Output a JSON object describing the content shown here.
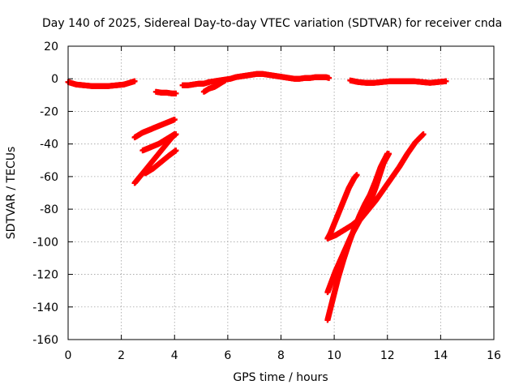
{
  "chart_data": {
    "type": "scatter",
    "title": "Day 140 of 2025, Sidereal Day-to-day VTEC variation (SDTVAR) for receiver cnda",
    "xlabel": "GPS time / hours",
    "ylabel": "SDTVAR / TECUs",
    "xlim": [
      0,
      16
    ],
    "ylim": [
      -160,
      20
    ],
    "xticks": [
      0,
      2,
      4,
      6,
      8,
      10,
      12,
      14,
      16
    ],
    "yticks": [
      -160,
      -140,
      -120,
      -100,
      -80,
      -60,
      -40,
      -20,
      0,
      20
    ],
    "grid": true,
    "marker_color": "#ff0000",
    "series": [
      {
        "x": [
          0.0,
          0.3,
          0.6,
          0.9,
          1.2,
          1.5,
          1.8,
          2.1,
          2.3,
          2.5
        ],
        "y": [
          -2,
          -3.5,
          -4,
          -4.5,
          -4.5,
          -4.5,
          -4,
          -3.5,
          -2.5,
          -1.5
        ]
      },
      {
        "x": [
          3.3,
          3.5,
          3.7,
          3.9,
          4.05
        ],
        "y": [
          -8,
          -8.5,
          -8.5,
          -9,
          -9
        ]
      },
      {
        "x": [
          4.3,
          4.5,
          4.7,
          4.9,
          5.1,
          5.3,
          5.5,
          5.7,
          5.9,
          6.1,
          6.3,
          6.5,
          6.7,
          6.9,
          7.1,
          7.3,
          7.5,
          7.7,
          7.9,
          8.1,
          8.3,
          8.5,
          8.7,
          8.9,
          9.1,
          9.3,
          9.5,
          9.7,
          9.8
        ],
        "y": [
          -4,
          -4,
          -3.5,
          -3,
          -3,
          -2,
          -1.5,
          -1,
          -0.5,
          0,
          1,
          1.5,
          2,
          2.5,
          3,
          3,
          2.5,
          2,
          1.5,
          1,
          0.5,
          0,
          0,
          0.5,
          0.5,
          1,
          1,
          1,
          0.5
        ]
      },
      {
        "x": [
          5.1,
          5.3,
          5.5,
          5.7,
          5.9
        ],
        "y": [
          -8,
          -6,
          -5,
          -3,
          -1
        ]
      },
      {
        "x": [
          10.6,
          10.9,
          11.2,
          11.5,
          11.8,
          12.1,
          12.4,
          12.7,
          13.0,
          13.3,
          13.6,
          13.9,
          14.2
        ],
        "y": [
          -1,
          -2,
          -2.5,
          -2.5,
          -2,
          -1.5,
          -1.5,
          -1.5,
          -1.5,
          -2,
          -2.5,
          -2,
          -1.5
        ]
      },
      {
        "x": [
          2.5,
          2.8,
          3.1,
          3.4,
          3.7,
          4.0
        ],
        "y": [
          -36,
          -33,
          -31,
          -29,
          -27,
          -25
        ]
      },
      {
        "x": [
          2.8,
          3.1,
          3.4,
          3.7,
          4.0
        ],
        "y": [
          -44,
          -42,
          -40,
          -37,
          -34
        ]
      },
      {
        "x": [
          2.5,
          2.7,
          2.9,
          3.1,
          3.3,
          3.5,
          3.7,
          3.9,
          4.05
        ],
        "y": [
          -64,
          -60,
          -56,
          -52,
          -48,
          -44,
          -40,
          -36,
          -34
        ]
      },
      {
        "x": [
          2.9,
          3.2,
          3.5,
          3.8,
          4.05
        ],
        "y": [
          -58,
          -55,
          -51,
          -47,
          -44
        ]
      },
      {
        "x": [
          9.75,
          9.85,
          9.95,
          10.05,
          10.15,
          10.25,
          10.35,
          10.45,
          10.55,
          10.65,
          10.75,
          10.85
        ],
        "y": [
          -98,
          -95,
          -91,
          -87,
          -83,
          -79,
          -75,
          -71,
          -67,
          -64,
          -61,
          -59
        ]
      },
      {
        "x": [
          9.75,
          10.05,
          10.35,
          10.65,
          10.95,
          11.25,
          11.55,
          11.85,
          12.05
        ],
        "y": [
          -98,
          -96,
          -93,
          -90,
          -86,
          -80,
          -67,
          -52,
          -46
        ]
      },
      {
        "x": [
          9.75,
          10.05,
          10.35,
          10.65,
          10.95,
          11.25,
          11.55,
          11.85,
          12.15,
          12.45,
          12.75,
          13.05,
          13.35
        ],
        "y": [
          -131,
          -118,
          -107,
          -96,
          -87,
          -81,
          -75,
          -68,
          -61,
          -54,
          -46,
          -39,
          -34
        ]
      },
      {
        "x": [
          9.75,
          9.95,
          10.15,
          10.35,
          10.55,
          10.75,
          10.95,
          11.15,
          11.35,
          11.55,
          11.75,
          12.0
        ],
        "y": [
          -148,
          -135,
          -122,
          -111,
          -101,
          -92,
          -84,
          -77,
          -71,
          -63,
          -54,
          -46
        ]
      }
    ]
  }
}
